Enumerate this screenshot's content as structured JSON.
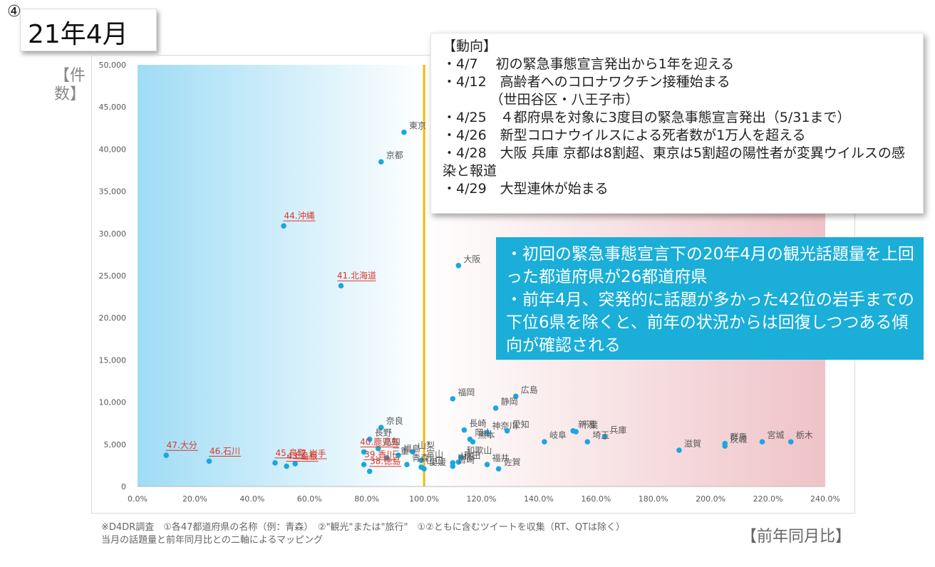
{
  "header": {
    "number": "④",
    "title": "21年4月"
  },
  "axis_titles": {
    "y": "【件数】",
    "x": "【前年同月比】"
  },
  "trend": {
    "heading": "【動向】",
    "items": [
      "・4/7　 初の緊急事態宣言発出から1年を迎える",
      "・4/12　高齢者へのコロナワクチン接種始まる",
      "　　　　（世田谷区・八王子市）",
      "・4/25　４都府県を対象に3度目の緊急事態宣言発出（5/31まで）",
      "・4/26　新型コロナウイルスによる死者数が1万人を超える",
      "・4/28　大阪 兵庫 京都は8割超、東京は5割超の陽性者が変異ウイルスの感染と報道",
      "・4/29　大型連休が始まる"
    ]
  },
  "summary": {
    "lines": [
      "・初回の緊急事態宣言下の20年4月の観光話題量を上回った都道府県が26都道府県",
      "・前年4月、突発的に話題が多かった42位の岩手までの下位6県を除くと、前年の状況からは回復しつつある傾向が確認される"
    ]
  },
  "footnote": {
    "line1": "※D4DR調査　①各47都道府県の名称（例：青森）　②\"観光\"または\"旅行\"　①②ともに含むツイートを収集（RT、QTは除く）",
    "line2": "当月の話題量と前年同月比との二軸によるマッピング"
  },
  "colors": {
    "point": "#1aa7e0",
    "threshold": "#f5b800",
    "left_zone": "#9fdcf5",
    "right_zone": "#efc3c8",
    "bottom_label": "#d9382a",
    "summary_bg": "#1aaed8"
  },
  "chart_data": {
    "type": "scatter",
    "xlim": [
      0,
      2.4
    ],
    "ylim": [
      0,
      50000
    ],
    "x_ticks": [
      "0.0%",
      "20.0%",
      "40.0%",
      "60.0%",
      "80.0%",
      "100.0%",
      "120.0%",
      "140.0%",
      "160.0%",
      "180.0%",
      "200.0%",
      "220.0%",
      "240.0%"
    ],
    "y_ticks": [
      "0",
      "5,000",
      "10,000",
      "15,000",
      "20,000",
      "25,000",
      "30,000",
      "35,000",
      "40,000",
      "45,000",
      "50,000"
    ],
    "threshold_x": 1.0,
    "grid": false,
    "points": [
      {
        "label": "東京",
        "x": 0.93,
        "y": 42000
      },
      {
        "label": "京都",
        "x": 0.85,
        "y": 38500
      },
      {
        "label": "44.沖縄",
        "x": 0.51,
        "y": 30900,
        "rank": true
      },
      {
        "label": "大阪",
        "x": 1.12,
        "y": 26200
      },
      {
        "label": "41.北海道",
        "x": 0.71,
        "y": 23800,
        "rank": true
      },
      {
        "label": "広島",
        "x": 1.32,
        "y": 10700
      },
      {
        "label": "福岡",
        "x": 1.1,
        "y": 10400
      },
      {
        "label": "静岡",
        "x": 1.25,
        "y": 9300
      },
      {
        "label": "奈良",
        "x": 0.85,
        "y": 7000
      },
      {
        "label": "長崎",
        "x": 1.14,
        "y": 6700
      },
      {
        "label": "神奈川",
        "x": 1.22,
        "y": 6400
      },
      {
        "label": "愛知",
        "x": 1.29,
        "y": 6600
      },
      {
        "label": "新潟",
        "x": 1.52,
        "y": 6600
      },
      {
        "label": "千葉",
        "x": 1.53,
        "y": 6500
      },
      {
        "label": "兵庫",
        "x": 1.63,
        "y": 5900
      },
      {
        "label": "長野",
        "x": 0.81,
        "y": 5600
      },
      {
        "label": "岡山",
        "x": 1.16,
        "y": 5600
      },
      {
        "label": "熊本",
        "x": 1.17,
        "y": 5300
      },
      {
        "label": "岐阜",
        "x": 1.42,
        "y": 5300
      },
      {
        "label": "埼玉",
        "x": 1.57,
        "y": 5300
      },
      {
        "label": "栃木",
        "x": 2.28,
        "y": 5300
      },
      {
        "label": "宮城",
        "x": 2.18,
        "y": 5300
      },
      {
        "label": "群馬",
        "x": 2.05,
        "y": 5100
      },
      {
        "label": "茨城",
        "x": 2.05,
        "y": 4800
      },
      {
        "label": "滋賀",
        "x": 1.89,
        "y": 4300
      },
      {
        "label": "高知",
        "x": 0.84,
        "y": 4500
      },
      {
        "label": "山梨",
        "x": 0.96,
        "y": 4100
      },
      {
        "label": "40.鹿児島",
        "x": 0.79,
        "y": 4100,
        "rank": true
      },
      {
        "label": "福島",
        "x": 0.91,
        "y": 3700
      },
      {
        "label": "三重",
        "x": 0.87,
        "y": 3400
      },
      {
        "label": "和歌山",
        "x": 1.13,
        "y": 3500
      },
      {
        "label": "富山",
        "x": 0.99,
        "y": 3100
      },
      {
        "label": "山形",
        "x": 1.1,
        "y": 2800
      },
      {
        "label": "秋田",
        "x": 1.12,
        "y": 2900
      },
      {
        "label": "福井",
        "x": 1.22,
        "y": 2600
      },
      {
        "label": "佐賀",
        "x": 1.26,
        "y": 2100
      },
      {
        "label": "青森",
        "x": 0.94,
        "y": 2600
      },
      {
        "label": "山口",
        "x": 0.99,
        "y": 2300
      },
      {
        "label": "愛媛",
        "x": 1.0,
        "y": 2100
      },
      {
        "label": "宮崎",
        "x": 1.1,
        "y": 2400
      },
      {
        "label": "39.香川",
        "x": 0.79,
        "y": 2600,
        "rank": true
      },
      {
        "label": "38.徳島",
        "x": 0.81,
        "y": 1800,
        "rank": true
      },
      {
        "label": "42.岩手",
        "x": 0.55,
        "y": 2700,
        "rank": true
      },
      {
        "label": "43.島根",
        "x": 0.52,
        "y": 2400,
        "rank": true
      },
      {
        "label": "45.鳥取",
        "x": 0.48,
        "y": 2800,
        "rank": true
      },
      {
        "label": "46.石川",
        "x": 0.25,
        "y": 3000,
        "rank": true
      },
      {
        "label": "47.大分",
        "x": 0.1,
        "y": 3700,
        "rank": true
      }
    ]
  }
}
